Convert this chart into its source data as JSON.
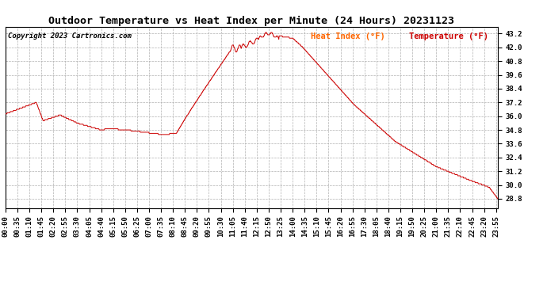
{
  "title": "Outdoor Temperature vs Heat Index per Minute (24 Hours) 20231123",
  "copyright": "Copyright 2023 Cartronics.com",
  "legend_heat": "Heat Index (°F)",
  "legend_temp": "Temperature (°F)",
  "line_color": "#cc0000",
  "background_color": "#ffffff",
  "grid_color": "#b0b0b0",
  "title_color": "#000000",
  "copyright_color": "#000000",
  "legend_heat_color": "#ff6600",
  "legend_temp_color": "#cc0000",
  "ylim_min": 28.0,
  "ylim_max": 43.8,
  "yticks": [
    28.8,
    30.0,
    31.2,
    32.4,
    33.6,
    34.8,
    36.0,
    37.2,
    38.4,
    39.6,
    40.8,
    42.0,
    43.2
  ],
  "title_fontsize": 9.5,
  "copyright_fontsize": 6.5,
  "legend_fontsize": 7.5,
  "tick_fontsize": 6.5,
  "num_minutes": 1440,
  "xlim_min": 0,
  "xlim_max": 1440
}
